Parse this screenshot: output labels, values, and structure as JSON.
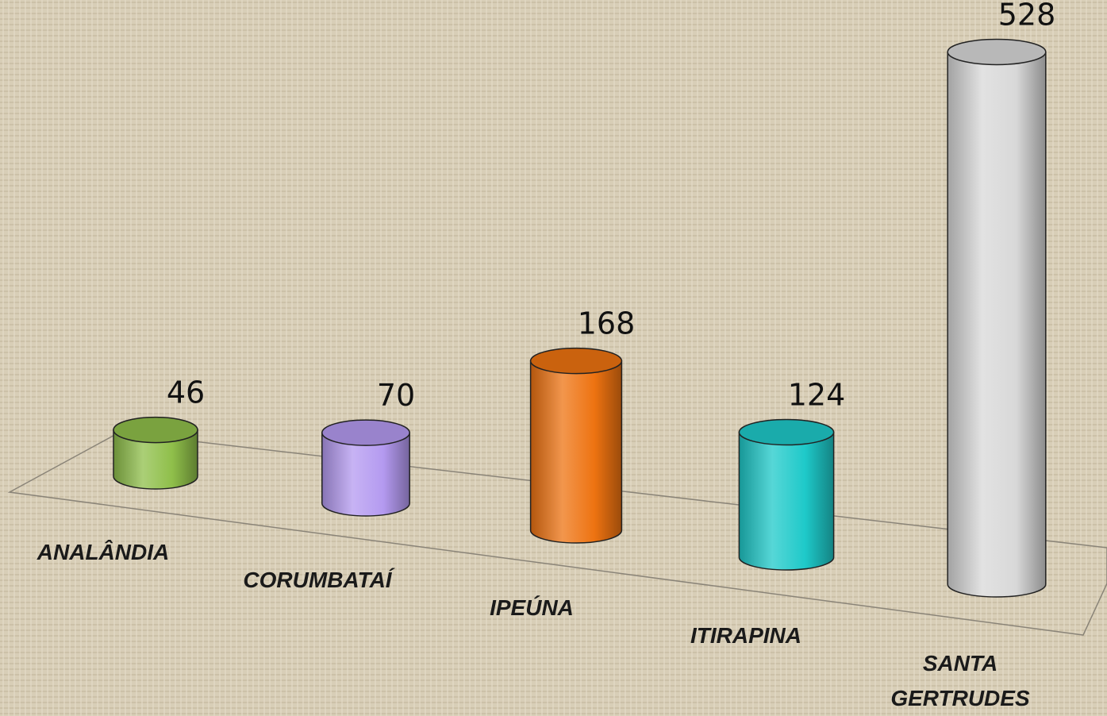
{
  "chart_data": {
    "type": "bar3d",
    "categories": [
      "ANALÂNDIA",
      "CORUMBATAÍ",
      "IPEÚNA",
      "ITIRAPINA",
      "SANTA GERTRUDES"
    ],
    "values": [
      46,
      70,
      168,
      124,
      528
    ],
    "colors": [
      "#8fbf4a",
      "#b49af0",
      "#ee7311",
      "#1ec9c9",
      "#d8d8d8"
    ]
  }
}
